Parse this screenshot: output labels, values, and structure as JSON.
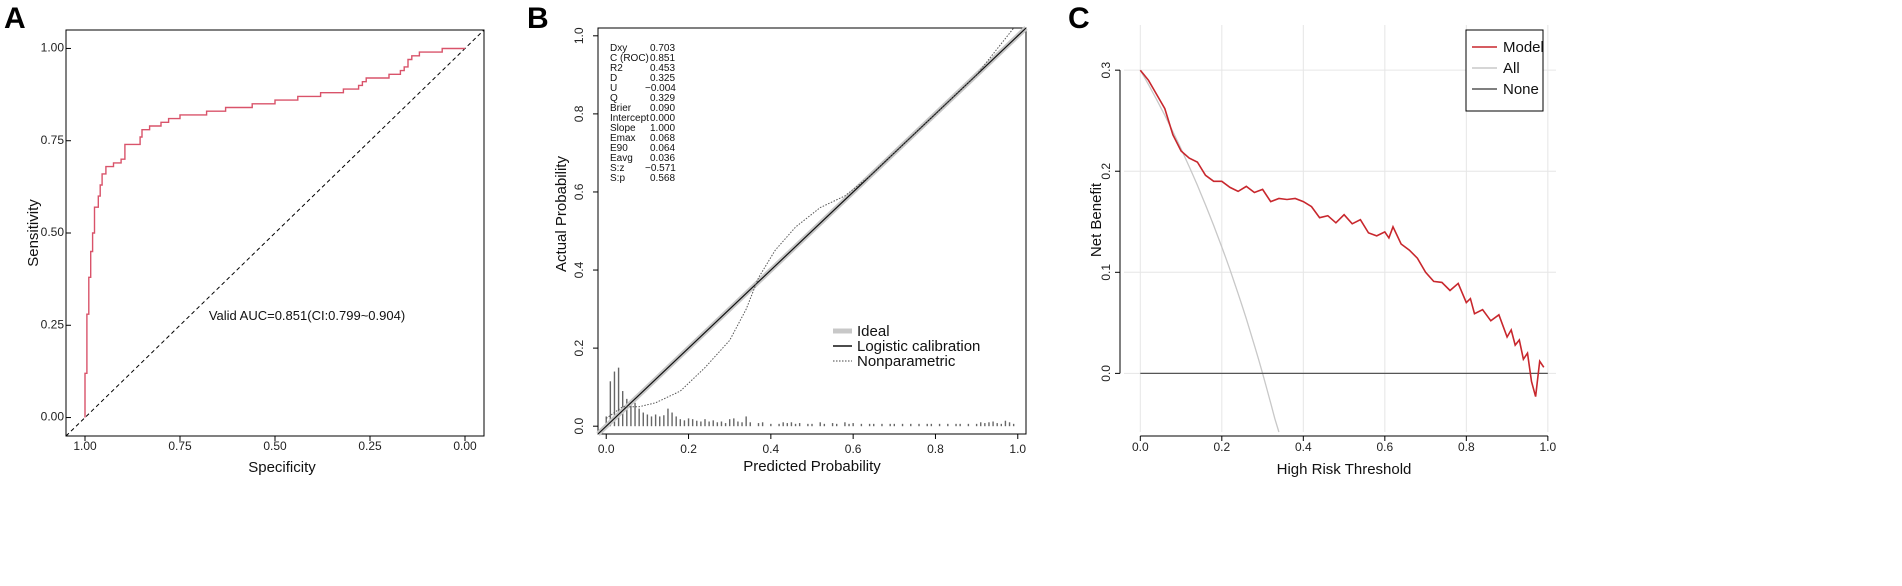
{
  "figure": {
    "panel_letters": [
      "A",
      "B",
      "C"
    ]
  },
  "chart_data": [
    {
      "id": "A",
      "type": "line",
      "title": "",
      "xlabel": "Specificity",
      "ylabel": "Sensitivity",
      "xlim": [
        -0.05,
        1.05
      ],
      "ylim": [
        -0.05,
        1.05
      ],
      "x_ticks": [
        "1.00",
        "0.75",
        "0.50",
        "0.25",
        "0.00"
      ],
      "y_ticks": [
        "0.00",
        "0.25",
        "0.50",
        "0.75",
        "1.00"
      ],
      "x_reversed": true,
      "annotation": "Valid AUC=0.851(CI:0.799~0.904)",
      "series": [
        {
          "color": "#d9536a",
          "points": [
            [
              1.0,
              0.0
            ],
            [
              1.0,
              0.12
            ],
            [
              0.995,
              0.12
            ],
            [
              0.995,
              0.28
            ],
            [
              0.99,
              0.28
            ],
            [
              0.99,
              0.38
            ],
            [
              0.985,
              0.38
            ],
            [
              0.985,
              0.45
            ],
            [
              0.98,
              0.45
            ],
            [
              0.98,
              0.5
            ],
            [
              0.975,
              0.5
            ],
            [
              0.975,
              0.57
            ],
            [
              0.965,
              0.57
            ],
            [
              0.965,
              0.6
            ],
            [
              0.96,
              0.6
            ],
            [
              0.96,
              0.63
            ],
            [
              0.955,
              0.63
            ],
            [
              0.955,
              0.66
            ],
            [
              0.945,
              0.66
            ],
            [
              0.945,
              0.68
            ],
            [
              0.925,
              0.68
            ],
            [
              0.925,
              0.69
            ],
            [
              0.905,
              0.69
            ],
            [
              0.905,
              0.7
            ],
            [
              0.895,
              0.7
            ],
            [
              0.895,
              0.74
            ],
            [
              0.855,
              0.74
            ],
            [
              0.855,
              0.76
            ],
            [
              0.85,
              0.76
            ],
            [
              0.85,
              0.78
            ],
            [
              0.83,
              0.78
            ],
            [
              0.83,
              0.79
            ],
            [
              0.8,
              0.79
            ],
            [
              0.8,
              0.8
            ],
            [
              0.78,
              0.8
            ],
            [
              0.78,
              0.81
            ],
            [
              0.75,
              0.81
            ],
            [
              0.75,
              0.82
            ],
            [
              0.68,
              0.82
            ],
            [
              0.68,
              0.83
            ],
            [
              0.63,
              0.83
            ],
            [
              0.63,
              0.84
            ],
            [
              0.56,
              0.84
            ],
            [
              0.56,
              0.85
            ],
            [
              0.5,
              0.85
            ],
            [
              0.5,
              0.86
            ],
            [
              0.44,
              0.86
            ],
            [
              0.44,
              0.87
            ],
            [
              0.38,
              0.87
            ],
            [
              0.38,
              0.88
            ],
            [
              0.32,
              0.88
            ],
            [
              0.32,
              0.89
            ],
            [
              0.28,
              0.89
            ],
            [
              0.28,
              0.9
            ],
            [
              0.27,
              0.9
            ],
            [
              0.27,
              0.91
            ],
            [
              0.26,
              0.91
            ],
            [
              0.26,
              0.92
            ],
            [
              0.2,
              0.92
            ],
            [
              0.2,
              0.93
            ],
            [
              0.17,
              0.93
            ],
            [
              0.17,
              0.94
            ],
            [
              0.16,
              0.94
            ],
            [
              0.16,
              0.95
            ],
            [
              0.15,
              0.95
            ],
            [
              0.15,
              0.97
            ],
            [
              0.14,
              0.97
            ],
            [
              0.14,
              0.98
            ],
            [
              0.12,
              0.98
            ],
            [
              0.12,
              0.99
            ],
            [
              0.06,
              0.99
            ],
            [
              0.06,
              1.0
            ],
            [
              0.0,
              1.0
            ]
          ]
        }
      ],
      "reference_line": [
        [
          1.0,
          0.0
        ],
        [
          0.0,
          1.0
        ]
      ]
    },
    {
      "id": "B",
      "type": "line",
      "title": "",
      "xlabel": "Predicted Probability",
      "ylabel": "Actual Probability",
      "xlim": [
        -0.02,
        1.02
      ],
      "ylim": [
        -0.02,
        1.02
      ],
      "x_ticks": [
        "0.0",
        "0.2",
        "0.4",
        "0.6",
        "0.8",
        "1.0"
      ],
      "y_ticks": [
        "0.0",
        "0.2",
        "0.4",
        "0.6",
        "0.8",
        "1.0"
      ],
      "stats": [
        [
          "Dxy",
          "0.703"
        ],
        [
          "C (ROC)",
          "0.851"
        ],
        [
          "R2",
          "0.453"
        ],
        [
          "D",
          "0.325"
        ],
        [
          "U",
          "−0.004"
        ],
        [
          "Q",
          "0.329"
        ],
        [
          "Brier",
          "0.090"
        ],
        [
          "Intercept",
          "0.000"
        ],
        [
          "Slope",
          "1.000"
        ],
        [
          "Emax",
          "0.068"
        ],
        [
          "E90",
          "0.064"
        ],
        [
          "Eavg",
          "0.036"
        ],
        [
          "S:z",
          "−0.571"
        ],
        [
          "S:p",
          "0.568"
        ]
      ],
      "legend": [
        {
          "label": "Ideal",
          "style": "ideal"
        },
        {
          "label": "Logistic calibration",
          "style": "logistic"
        },
        {
          "label": "Nonparametric",
          "style": "nonparametric"
        }
      ],
      "nonparametric": [
        [
          0.0,
          0.02
        ],
        [
          0.04,
          0.05
        ],
        [
          0.08,
          0.05
        ],
        [
          0.12,
          0.06
        ],
        [
          0.18,
          0.09
        ],
        [
          0.24,
          0.15
        ],
        [
          0.3,
          0.22
        ],
        [
          0.34,
          0.3
        ],
        [
          0.37,
          0.38
        ],
        [
          0.41,
          0.45
        ],
        [
          0.46,
          0.51
        ],
        [
          0.52,
          0.56
        ],
        [
          0.58,
          0.59
        ],
        [
          0.64,
          0.64
        ],
        [
          0.7,
          0.7
        ],
        [
          0.8,
          0.8
        ],
        [
          0.9,
          0.9
        ],
        [
          0.99,
          1.02
        ]
      ],
      "rug_x": [
        0.0,
        0.01,
        0.02,
        0.03,
        0.04,
        0.05,
        0.06,
        0.07,
        0.08,
        0.09,
        0.1,
        0.11,
        0.12,
        0.13,
        0.14,
        0.15,
        0.16,
        0.17,
        0.18,
        0.19,
        0.2,
        0.21,
        0.22,
        0.23,
        0.24,
        0.25,
        0.26,
        0.27,
        0.28,
        0.29,
        0.3,
        0.31,
        0.32,
        0.33,
        0.34,
        0.35,
        0.37,
        0.38,
        0.4,
        0.42,
        0.43,
        0.44,
        0.45,
        0.46,
        0.47,
        0.49,
        0.5,
        0.52,
        0.53,
        0.55,
        0.56,
        0.58,
        0.59,
        0.6,
        0.62,
        0.64,
        0.65,
        0.67,
        0.69,
        0.7,
        0.72,
        0.74,
        0.76,
        0.78,
        0.79,
        0.81,
        0.83,
        0.85,
        0.86,
        0.88,
        0.9,
        0.91,
        0.92,
        0.93,
        0.94,
        0.95,
        0.96,
        0.97,
        0.98,
        0.99
      ],
      "rug_h": [
        0.025,
        0.115,
        0.14,
        0.15,
        0.09,
        0.07,
        0.055,
        0.06,
        0.045,
        0.035,
        0.03,
        0.025,
        0.03,
        0.025,
        0.028,
        0.045,
        0.035,
        0.025,
        0.018,
        0.015,
        0.02,
        0.018,
        0.014,
        0.012,
        0.018,
        0.012,
        0.015,
        0.01,
        0.012,
        0.008,
        0.018,
        0.02,
        0.012,
        0.01,
        0.025,
        0.01,
        0.008,
        0.01,
        0.006,
        0.006,
        0.01,
        0.008,
        0.01,
        0.006,
        0.008,
        0.006,
        0.006,
        0.01,
        0.006,
        0.008,
        0.006,
        0.01,
        0.006,
        0.008,
        0.006,
        0.006,
        0.006,
        0.006,
        0.006,
        0.006,
        0.006,
        0.006,
        0.006,
        0.006,
        0.006,
        0.006,
        0.006,
        0.006,
        0.006,
        0.006,
        0.006,
        0.01,
        0.008,
        0.01,
        0.012,
        0.008,
        0.006,
        0.014,
        0.01,
        0.006
      ]
    },
    {
      "id": "C",
      "type": "line",
      "title": "",
      "xlabel": "High Risk Threshold",
      "ylabel": "Net Benefit",
      "xlim": [
        -0.04,
        1.02
      ],
      "ylim": [
        -0.058,
        0.315
      ],
      "x_ticks": [
        "0.0",
        "0.2",
        "0.4",
        "0.6",
        "0.8",
        "1.0"
      ],
      "y_ticks": [
        "0.0",
        "0.1",
        "0.2",
        "0.3"
      ],
      "grid": true,
      "legend_position": "top-right",
      "series": [
        {
          "name": "Model",
          "color": "#c8272d",
          "points": [
            [
              0.0,
              0.3
            ],
            [
              0.02,
              0.29
            ],
            [
              0.04,
              0.276
            ],
            [
              0.06,
              0.262
            ],
            [
              0.08,
              0.236
            ],
            [
              0.1,
              0.22
            ],
            [
              0.12,
              0.213
            ],
            [
              0.14,
              0.209
            ],
            [
              0.16,
              0.196
            ],
            [
              0.18,
              0.19
            ],
            [
              0.2,
              0.19
            ],
            [
              0.22,
              0.184
            ],
            [
              0.24,
              0.18
            ],
            [
              0.26,
              0.185
            ],
            [
              0.28,
              0.179
            ],
            [
              0.3,
              0.182
            ],
            [
              0.32,
              0.17
            ],
            [
              0.34,
              0.173
            ],
            [
              0.36,
              0.172
            ],
            [
              0.38,
              0.173
            ],
            [
              0.4,
              0.17
            ],
            [
              0.42,
              0.165
            ],
            [
              0.44,
              0.154
            ],
            [
              0.46,
              0.156
            ],
            [
              0.48,
              0.149
            ],
            [
              0.5,
              0.157
            ],
            [
              0.52,
              0.148
            ],
            [
              0.54,
              0.152
            ],
            [
              0.56,
              0.139
            ],
            [
              0.58,
              0.136
            ],
            [
              0.6,
              0.14
            ],
            [
              0.61,
              0.134
            ],
            [
              0.62,
              0.145
            ],
            [
              0.64,
              0.128
            ],
            [
              0.66,
              0.122
            ],
            [
              0.68,
              0.114
            ],
            [
              0.7,
              0.1
            ],
            [
              0.72,
              0.091
            ],
            [
              0.74,
              0.09
            ],
            [
              0.76,
              0.082
            ],
            [
              0.78,
              0.089
            ],
            [
              0.8,
              0.07
            ],
            [
              0.81,
              0.074
            ],
            [
              0.82,
              0.059
            ],
            [
              0.84,
              0.063
            ],
            [
              0.86,
              0.052
            ],
            [
              0.88,
              0.058
            ],
            [
              0.9,
              0.036
            ],
            [
              0.91,
              0.043
            ],
            [
              0.92,
              0.028
            ],
            [
              0.93,
              0.033
            ],
            [
              0.94,
              0.014
            ],
            [
              0.95,
              0.02
            ],
            [
              0.96,
              -0.008
            ],
            [
              0.97,
              -0.023
            ],
            [
              0.98,
              0.012
            ],
            [
              0.99,
              0.006
            ]
          ]
        },
        {
          "name": "All",
          "color": "#c8c8c8",
          "prevalence": 0.3
        },
        {
          "name": "None",
          "color": "#555555",
          "points": [
            [
              0.0,
              0.0
            ],
            [
              1.0,
              0.0
            ]
          ]
        }
      ]
    }
  ]
}
